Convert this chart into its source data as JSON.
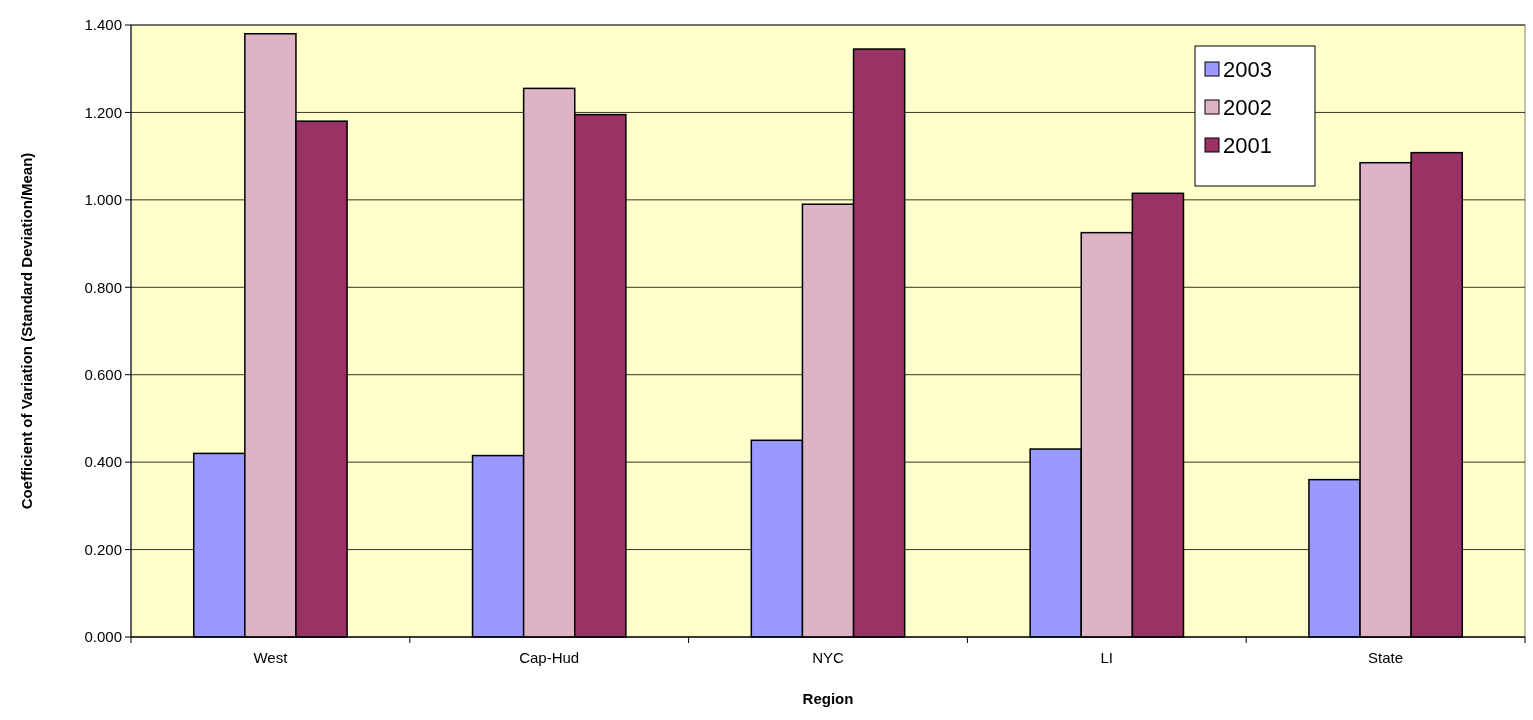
{
  "chart_data": {
    "type": "bar",
    "xlabel": "Region",
    "ylabel": "Coefficient of Variation (Standard Deviation/Mean)",
    "categories": [
      "West",
      "Cap-Hud",
      "NYC",
      "LI",
      "State"
    ],
    "series": [
      {
        "name": "2003",
        "color": "#9999ff",
        "values": [
          0.42,
          0.415,
          0.45,
          0.43,
          0.36
        ]
      },
      {
        "name": "2002",
        "color": "#dfb3c6",
        "values": [
          1.38,
          1.255,
          0.99,
          0.925,
          1.085
        ]
      },
      {
        "name": "2001",
        "color": "#993366",
        "values": [
          1.18,
          1.195,
          1.345,
          1.015,
          1.108
        ]
      }
    ],
    "ylim": [
      0,
      1.4
    ],
    "yticks": [
      {
        "value": 0,
        "label": "0.000"
      },
      {
        "value": 0.2,
        "label": "0.200"
      },
      {
        "value": 0.4,
        "label": "0.400"
      },
      {
        "value": 0.6,
        "label": "0.600"
      },
      {
        "value": 0.8,
        "label": "0.800"
      },
      {
        "value": 1,
        "label": "1.000"
      },
      {
        "value": 1.2,
        "label": "1.200"
      },
      {
        "value": 1.4,
        "label": "1.400"
      }
    ],
    "grid": "y",
    "legend": "top right"
  }
}
